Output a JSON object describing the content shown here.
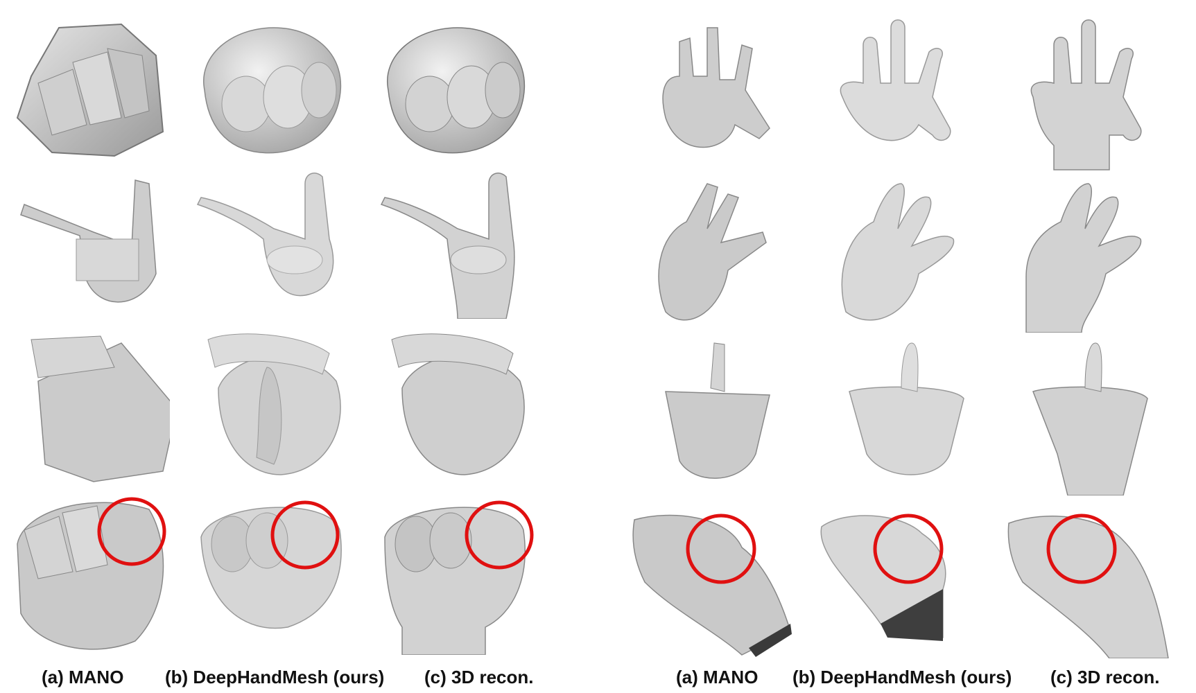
{
  "figure": {
    "left_panel": {
      "captions": [
        "(a) MANO",
        "(b) DeepHandMesh (ours)",
        "(c) 3D recon."
      ]
    },
    "right_panel": {
      "captions": [
        "(a) MANO",
        "(b) DeepHandMesh (ours)",
        "(c) 3D recon."
      ]
    },
    "highlight_color": "#e01010",
    "mesh_color": "#c8c8c8"
  }
}
